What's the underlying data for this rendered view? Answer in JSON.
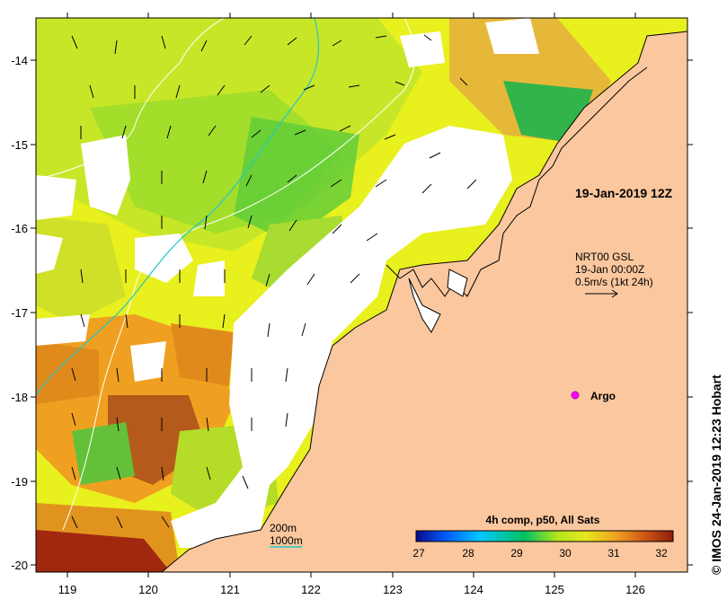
{
  "map": {
    "date_label": "19-Jan-2019 12Z",
    "legend": {
      "line1": "NRT00 GSL",
      "line2": "19-Jan 00:00Z",
      "line3": "0.5m/s (1kt 24h)"
    },
    "argo_label": "Argo",
    "depth_legend": {
      "shallow": "200m",
      "deep": "1000m"
    },
    "colorbar": {
      "title": "4h comp, p50, All Sats",
      "ticks": [
        "27",
        "28",
        "29",
        "30",
        "31",
        "32"
      ],
      "colors": [
        "#0a0a8c",
        "#0060ff",
        "#00c8ff",
        "#00c060",
        "#b4e61e",
        "#e6e61e",
        "#f0a020",
        "#c85014",
        "#8c1e0a"
      ]
    },
    "x_ticks": [
      "119",
      "120",
      "121",
      "122",
      "123",
      "124",
      "125",
      "126"
    ],
    "y_ticks": [
      "-14",
      "-15",
      "-16",
      "-17",
      "-18",
      "-19",
      "-20"
    ],
    "credit": "© IMOS 24-Jan-2019 12:23 Hobart",
    "land_color": "#fbc79e"
  }
}
